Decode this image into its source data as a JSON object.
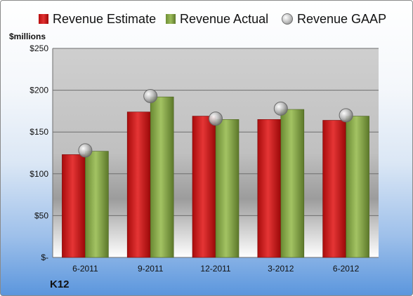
{
  "legend": {
    "estimate": "Revenue Estimate",
    "actual": "Revenue Actual",
    "gaap": "Revenue GAAP"
  },
  "unit_label": "$millions",
  "company": "K12",
  "colors": {
    "estimate": "#c81e1e",
    "actual": "#8aab4a",
    "gaap": "#b5b5b5"
  },
  "chart_data": {
    "type": "bar",
    "categories": [
      "6-2011",
      "9-2011",
      "12-2011",
      "3-2012",
      "6-2012"
    ],
    "series": [
      {
        "name": "Revenue Estimate",
        "type": "bar",
        "values": [
          123,
          174,
          169,
          165,
          164
        ]
      },
      {
        "name": "Revenue Actual",
        "type": "bar",
        "values": [
          127,
          192,
          165,
          177,
          169
        ]
      },
      {
        "name": "Revenue GAAP",
        "type": "scatter",
        "values": [
          128,
          193,
          166,
          178,
          170
        ]
      }
    ],
    "ylabel": "$millions",
    "ylim": [
      0,
      250
    ],
    "yticks": [
      0,
      50,
      100,
      150,
      200,
      250
    ],
    "ytick_labels": [
      "$-",
      "$50",
      "$100",
      "$150",
      "$200",
      "$250"
    ],
    "grid": true,
    "legend": "top"
  }
}
